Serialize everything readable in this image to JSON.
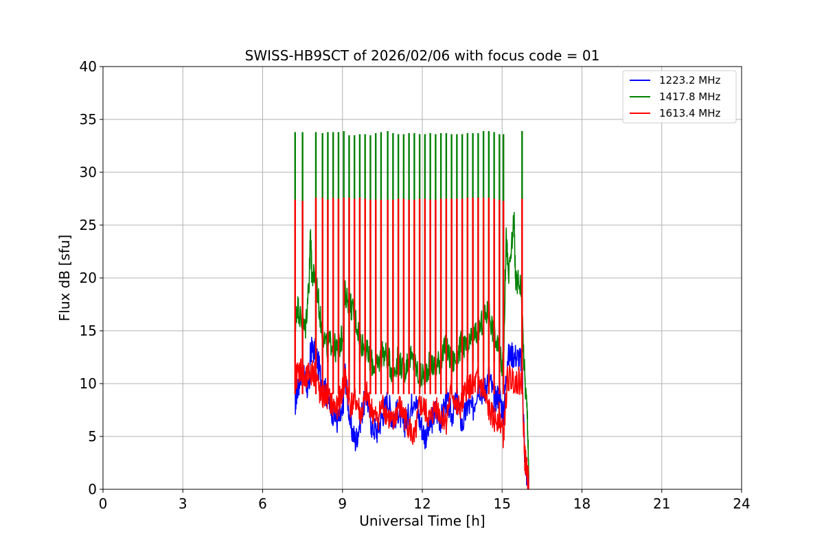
{
  "chart_data": {
    "type": "line",
    "title": "SWISS-HB9SCT of 2026/02/06 with focus code = 01",
    "xlabel": "Universal Time [h]",
    "ylabel": "Flux dB [sfu]",
    "xlim": [
      0,
      24
    ],
    "ylim": [
      0,
      40
    ],
    "xticks": [
      0,
      3,
      6,
      9,
      12,
      15,
      18,
      21,
      24
    ],
    "yticks": [
      0,
      5,
      10,
      15,
      20,
      25,
      30,
      35,
      40
    ],
    "grid": true,
    "legend_position": "top-right",
    "series": [
      {
        "name": "1223.2 MHz",
        "color": "#0000ff",
        "points": [
          [
            7.22,
            8.0
          ],
          [
            7.3,
            9.5
          ],
          [
            7.45,
            11.0
          ],
          [
            7.6,
            10.5
          ],
          [
            7.75,
            9.0
          ],
          [
            7.8,
            13.3
          ],
          [
            8.0,
            13.0
          ],
          [
            8.2,
            10.5
          ],
          [
            8.4,
            9.0
          ],
          [
            8.6,
            7.5
          ],
          [
            8.8,
            6.5
          ],
          [
            9.0,
            7.0
          ],
          [
            9.1,
            11.0
          ],
          [
            9.3,
            6.0
          ],
          [
            9.5,
            4.5
          ],
          [
            9.7,
            7.0
          ],
          [
            9.9,
            9.0
          ],
          [
            10.1,
            6.0
          ],
          [
            10.3,
            5.5
          ],
          [
            10.5,
            7.0
          ],
          [
            10.7,
            8.5
          ],
          [
            10.9,
            6.5
          ],
          [
            11.1,
            7.5
          ],
          [
            11.3,
            6.0
          ],
          [
            11.5,
            7.0
          ],
          [
            11.7,
            9.0
          ],
          [
            11.9,
            6.5
          ],
          [
            12.1,
            5.0
          ],
          [
            12.3,
            6.0
          ],
          [
            12.5,
            7.5
          ],
          [
            12.7,
            6.5
          ],
          [
            12.9,
            8.5
          ],
          [
            13.1,
            7.0
          ],
          [
            13.3,
            8.5
          ],
          [
            13.5,
            6.0
          ],
          [
            13.7,
            8.0
          ],
          [
            13.9,
            7.5
          ],
          [
            14.1,
            10.0
          ],
          [
            14.3,
            9.0
          ],
          [
            14.5,
            11.0
          ],
          [
            14.7,
            8.5
          ],
          [
            14.9,
            9.0
          ],
          [
            15.05,
            7.0
          ],
          [
            15.2,
            12.5
          ],
          [
            15.4,
            12.8
          ],
          [
            15.6,
            12.5
          ],
          [
            15.75,
            12.0
          ],
          [
            15.85,
            3.0
          ],
          [
            15.95,
            1.0
          ],
          [
            16.0,
            0.5
          ]
        ]
      },
      {
        "name": "1417.8 MHz",
        "color": "#008000",
        "points": [
          [
            7.22,
            15.5
          ],
          [
            7.3,
            17.5
          ],
          [
            7.45,
            16.0
          ],
          [
            7.6,
            15.0
          ],
          [
            7.75,
            20.0
          ],
          [
            7.8,
            24.2
          ],
          [
            7.85,
            20.2
          ],
          [
            8.0,
            20.0
          ],
          [
            8.2,
            15.5
          ],
          [
            8.4,
            13.5
          ],
          [
            8.6,
            14.0
          ],
          [
            8.8,
            13.0
          ],
          [
            9.0,
            14.5
          ],
          [
            9.1,
            18.5
          ],
          [
            9.3,
            17.5
          ],
          [
            9.5,
            16.0
          ],
          [
            9.7,
            14.0
          ],
          [
            9.9,
            13.0
          ],
          [
            10.1,
            12.0
          ],
          [
            10.3,
            11.5
          ],
          [
            10.5,
            13.0
          ],
          [
            10.7,
            12.5
          ],
          [
            10.9,
            11.0
          ],
          [
            11.1,
            12.5
          ],
          [
            11.3,
            11.0
          ],
          [
            11.5,
            12.5
          ],
          [
            11.7,
            12.0
          ],
          [
            11.9,
            10.5
          ],
          [
            12.1,
            11.0
          ],
          [
            12.3,
            12.0
          ],
          [
            12.5,
            11.5
          ],
          [
            12.7,
            12.5
          ],
          [
            12.9,
            13.5
          ],
          [
            13.1,
            12.0
          ],
          [
            13.3,
            12.5
          ],
          [
            13.5,
            14.0
          ],
          [
            13.7,
            13.0
          ],
          [
            13.9,
            14.5
          ],
          [
            14.1,
            15.0
          ],
          [
            14.3,
            16.0
          ],
          [
            14.5,
            17.0
          ],
          [
            14.7,
            14.5
          ],
          [
            14.9,
            13.0
          ],
          [
            15.05,
            11.5
          ],
          [
            15.15,
            24.0
          ],
          [
            15.25,
            19.8
          ],
          [
            15.45,
            25.8
          ],
          [
            15.5,
            19.7
          ],
          [
            15.7,
            19.6
          ],
          [
            15.85,
            10.5
          ],
          [
            15.95,
            7.0
          ],
          [
            16.0,
            1.0
          ]
        ]
      },
      {
        "name": "1613.4 MHz",
        "color": "#ff0000",
        "points": [
          [
            7.22,
            10.5
          ],
          [
            7.3,
            11.0
          ],
          [
            7.45,
            11.5
          ],
          [
            7.6,
            10.0
          ],
          [
            7.75,
            11.0
          ],
          [
            7.9,
            11.0
          ],
          [
            8.0,
            10.8
          ],
          [
            8.2,
            8.5
          ],
          [
            8.4,
            9.0
          ],
          [
            8.6,
            8.0
          ],
          [
            8.8,
            7.5
          ],
          [
            9.0,
            9.5
          ],
          [
            9.1,
            10.5
          ],
          [
            9.3,
            8.0
          ],
          [
            9.5,
            8.5
          ],
          [
            9.7,
            7.0
          ],
          [
            9.9,
            9.0
          ],
          [
            10.1,
            7.5
          ],
          [
            10.3,
            6.5
          ],
          [
            10.5,
            8.0
          ],
          [
            10.7,
            7.0
          ],
          [
            10.9,
            6.0
          ],
          [
            11.1,
            8.0
          ],
          [
            11.3,
            7.0
          ],
          [
            11.5,
            6.0
          ],
          [
            11.7,
            4.5
          ],
          [
            11.9,
            8.0
          ],
          [
            12.1,
            7.5
          ],
          [
            12.3,
            6.5
          ],
          [
            12.5,
            8.0
          ],
          [
            12.7,
            7.0
          ],
          [
            12.9,
            6.5
          ],
          [
            13.1,
            9.5
          ],
          [
            13.3,
            7.5
          ],
          [
            13.5,
            8.0
          ],
          [
            13.7,
            10.0
          ],
          [
            13.9,
            9.5
          ],
          [
            14.1,
            10.5
          ],
          [
            14.3,
            9.0
          ],
          [
            14.5,
            7.5
          ],
          [
            14.7,
            6.5
          ],
          [
            14.9,
            7.0
          ],
          [
            15.05,
            5.0
          ],
          [
            15.2,
            10.5
          ],
          [
            15.4,
            10.4
          ],
          [
            15.6,
            10.3
          ],
          [
            15.75,
            10.2
          ],
          [
            15.85,
            3.0
          ],
          [
            15.95,
            1.5
          ],
          [
            16.0,
            0.5
          ]
        ]
      }
    ],
    "spikes": {
      "times": [
        7.22,
        7.5,
        8.0,
        8.25,
        8.45,
        8.65,
        8.85,
        9.05,
        9.25,
        9.45,
        9.65,
        9.85,
        10.05,
        10.25,
        10.45,
        10.7,
        10.9,
        11.1,
        11.3,
        11.5,
        11.7,
        11.9,
        12.1,
        12.3,
        12.5,
        12.7,
        12.9,
        13.1,
        13.3,
        13.5,
        13.7,
        13.9,
        14.1,
        14.3,
        14.5,
        14.7,
        14.9,
        15.05,
        15.75
      ],
      "green_peaks": [
        33.8,
        33.8,
        33.8,
        33.7,
        33.8,
        33.8,
        33.8,
        33.9,
        33.5,
        33.5,
        33.6,
        33.6,
        33.5,
        33.7,
        33.8,
        33.9,
        33.7,
        33.6,
        33.6,
        33.7,
        33.7,
        33.6,
        33.6,
        33.7,
        33.6,
        33.7,
        33.7,
        33.6,
        33.6,
        33.6,
        33.7,
        33.7,
        33.7,
        33.9,
        33.9,
        33.8,
        33.6,
        33.6,
        33.9
      ],
      "red_peaks": [
        27.4,
        27.3,
        27.6,
        27.6,
        27.4,
        27.6,
        27.5,
        27.6,
        27.6,
        27.5,
        27.6,
        27.5,
        27.4,
        27.4,
        27.4,
        27.4,
        27.4,
        27.5,
        27.5,
        27.4,
        27.4,
        27.5,
        27.5,
        27.4,
        27.4,
        27.5,
        27.5,
        27.5,
        27.5,
        27.5,
        27.6,
        27.6,
        27.6,
        27.6,
        27.6,
        27.5,
        27.4,
        27.3,
        27.5
      ]
    }
  }
}
